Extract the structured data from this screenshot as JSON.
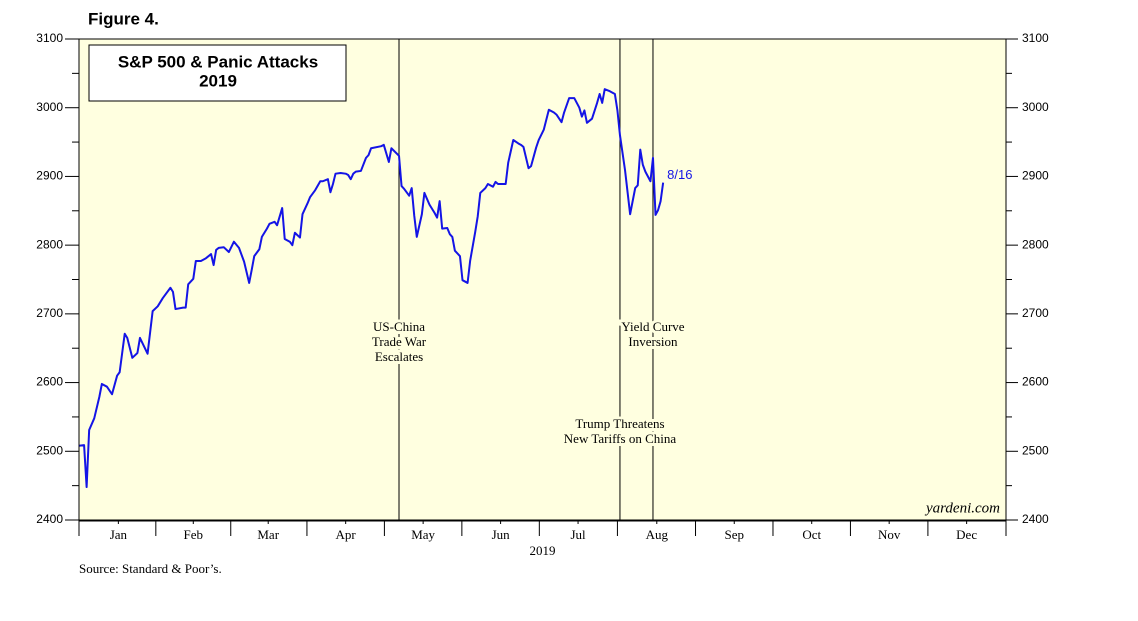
{
  "chart_data": {
    "type": "line",
    "figure_label": "Figure 4.",
    "title": [
      "S&P 500 & Panic Attacks",
      "2019"
    ],
    "xlabel": "2019",
    "source": "Source: Standard & Poor’s.",
    "watermark": "yardeni.com",
    "end_label": "8/16",
    "color": "#1414e6",
    "background": "#ffffe0",
    "xlim": [
      0,
      365
    ],
    "xticks": [
      {
        "value": 15.5,
        "label": "Jan"
      },
      {
        "value": 45,
        "label": "Feb"
      },
      {
        "value": 74.5,
        "label": "Mar"
      },
      {
        "value": 105,
        "label": "Apr"
      },
      {
        "value": 135.5,
        "label": "May"
      },
      {
        "value": 166,
        "label": "Jun"
      },
      {
        "value": 196.5,
        "label": "Jul"
      },
      {
        "value": 227.5,
        "label": "Aug"
      },
      {
        "value": 258,
        "label": "Sep"
      },
      {
        "value": 288.5,
        "label": "Oct"
      },
      {
        "value": 319,
        "label": "Nov"
      },
      {
        "value": 349.5,
        "label": "Dec"
      }
    ],
    "ylim": [
      2400,
      3100
    ],
    "yticks": [
      2400,
      2500,
      2600,
      2700,
      2800,
      2900,
      3000,
      3100
    ],
    "x": [
      0,
      2,
      3,
      4,
      6,
      8,
      9,
      11,
      13,
      15,
      16,
      18,
      19,
      21,
      23,
      24,
      27,
      29,
      31,
      33,
      36,
      37,
      38,
      41,
      42,
      43,
      45,
      46,
      48,
      50,
      52,
      53,
      54,
      55,
      57,
      59,
      61,
      63,
      65,
      67,
      68,
      69,
      71,
      72,
      74,
      75,
      77,
      78,
      80,
      81,
      83,
      84,
      85,
      87,
      88,
      90,
      91,
      93,
      95,
      96,
      98,
      99,
      100,
      101,
      103,
      105,
      106,
      107,
      108,
      109,
      111,
      113,
      114,
      115,
      119,
      120,
      122,
      123,
      126,
      127,
      128,
      130,
      131,
      132,
      133,
      135,
      136,
      138,
      140,
      141,
      142,
      143,
      145,
      146,
      147,
      148,
      150,
      151,
      153,
      154,
      156,
      157,
      158,
      160,
      161,
      163,
      164,
      165,
      168,
      169,
      171,
      173,
      174,
      175,
      177,
      178,
      180,
      181,
      183,
      185,
      187,
      188,
      190,
      191,
      193,
      195,
      197,
      198,
      199,
      200,
      202,
      204,
      205,
      206,
      207,
      209,
      211,
      212,
      213,
      215,
      217,
      219,
      220,
      221,
      222,
      223,
      225,
      226,
      227,
      228,
      229,
      230
    ],
    "values": [
      2508,
      2509,
      2448,
      2531,
      2548,
      2579,
      2598,
      2594,
      2583,
      2610,
      2615,
      2671,
      2665,
      2636,
      2643,
      2665,
      2642,
      2704,
      2711,
      2723,
      2738,
      2732,
      2707,
      2709,
      2709,
      2743,
      2751,
      2777,
      2777,
      2781,
      2787,
      2771,
      2793,
      2796,
      2797,
      2790,
      2805,
      2796,
      2776,
      2745,
      2764,
      2784,
      2794,
      2812,
      2824,
      2831,
      2834,
      2829,
      2854,
      2809,
      2805,
      2800,
      2818,
      2811,
      2845,
      2861,
      2870,
      2880,
      2893,
      2893,
      2896,
      2877,
      2889,
      2904,
      2905,
      2904,
      2902,
      2896,
      2904,
      2907,
      2908,
      2927,
      2931,
      2941,
      2944,
      2946,
      2921,
      2941,
      2930,
      2886,
      2882,
      2872,
      2883,
      2843,
      2812,
      2845,
      2876,
      2859,
      2847,
      2840,
      2864,
      2824,
      2825,
      2816,
      2812,
      2792,
      2784,
      2749,
      2745,
      2777,
      2819,
      2842,
      2876,
      2883,
      2889,
      2885,
      2892,
      2889,
      2889,
      2920,
      2953,
      2948,
      2946,
      2943,
      2912,
      2915,
      2942,
      2953,
      2968,
      2997,
      2993,
      2990,
      2979,
      2993,
      3014,
      3014,
      3000,
      2987,
      2996,
      2978,
      2984,
      3007,
      3020,
      3007,
      3027,
      3024,
      3020,
      2996,
      2960,
      2909,
      2845,
      2883,
      2887,
      2939,
      2917,
      2907,
      2893,
      2927,
      2844,
      2851,
      2864,
      2891
    ],
    "annotations": [
      {
        "x": 126,
        "lines": [
          "US-China",
          "Trade War",
          "Escalates"
        ]
      },
      {
        "x": 226,
        "lines": [
          "Yield Curve",
          "Inversion"
        ]
      },
      {
        "x": 213,
        "lines": [
          "Trump Threatens",
          "New Tariffs on China"
        ]
      }
    ]
  }
}
